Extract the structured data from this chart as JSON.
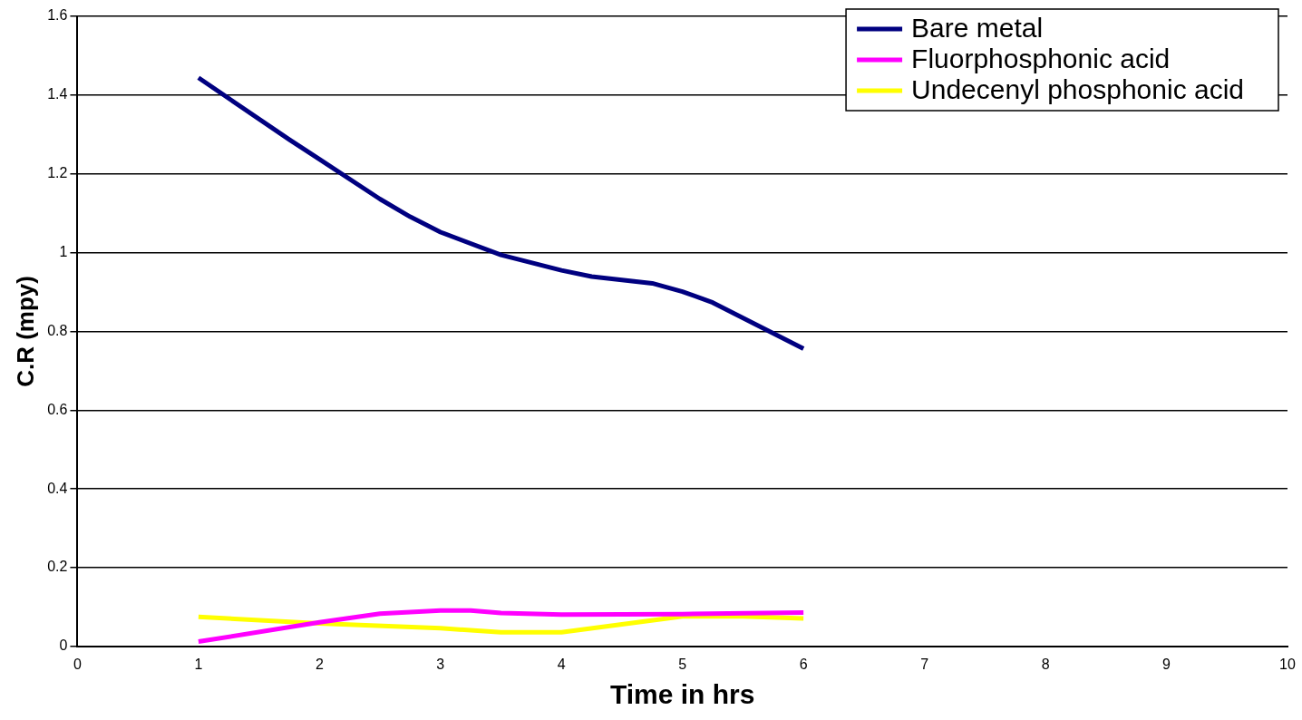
{
  "chart_data": {
    "type": "line",
    "xlabel": "Time in hrs",
    "ylabel": "C.R (mpy)",
    "xlim": [
      0,
      10
    ],
    "xticks": [
      0,
      1,
      2,
      3,
      4,
      5,
      6,
      7,
      8,
      9,
      10
    ],
    "ylim": [
      0,
      1.6
    ],
    "yticks": [
      0,
      0.2,
      0.4,
      0.6,
      0.8,
      1,
      1.2,
      1.4,
      1.6
    ],
    "grid": "y",
    "legend": "top right",
    "marker": "none",
    "line_style": "solid",
    "series": [
      {
        "name": "Bare metal",
        "color": "#000080",
        "x": [
          1,
          1.75,
          2,
          2.5,
          2.75,
          3,
          3.5,
          4,
          4.25,
          4.75,
          5,
          5.25,
          6
        ],
        "values": [
          1.444,
          1.287,
          1.237,
          1.136,
          1.091,
          1.052,
          0.994,
          0.955,
          0.939,
          0.922,
          0.901,
          0.873,
          0.756
        ]
      },
      {
        "name": "Fluorphosphonic acid",
        "color": "#ff00ff",
        "x": [
          1,
          2,
          2.5,
          3,
          3.25,
          3.5,
          4,
          5,
          6
        ],
        "values": [
          0.012,
          0.061,
          0.083,
          0.091,
          0.091,
          0.085,
          0.081,
          0.082,
          0.086
        ]
      },
      {
        "name": "Undecenyl phosphonic acid",
        "color": "#ffff00",
        "x": [
          1,
          2,
          3,
          3.5,
          4,
          5,
          5.5,
          6
        ],
        "values": [
          0.075,
          0.058,
          0.046,
          0.036,
          0.036,
          0.076,
          0.076,
          0.071
        ]
      }
    ]
  }
}
